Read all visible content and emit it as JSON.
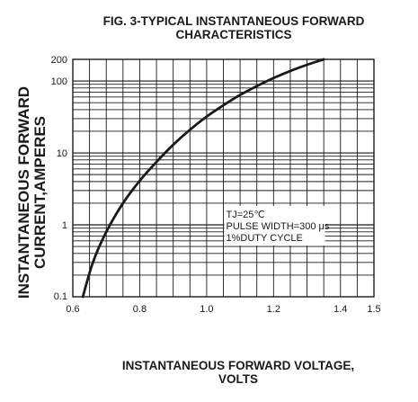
{
  "chart_data": {
    "type": "line",
    "title_lines": [
      "FIG. 3-TYPICAL INSTANTANEOUS FORWARD",
      "CHARACTERISTICS"
    ],
    "xlabel_lines": [
      "INSTANTANEOUS FORWARD VOLTAGE,",
      "VOLTS"
    ],
    "ylabel_lines": [
      "INSTANTANEOUS FORWARD",
      "CURRENT,AMPERES"
    ],
    "x_scale": "linear",
    "y_scale": "log",
    "xlim": [
      0.6,
      1.5
    ],
    "ylim": [
      0.1,
      200
    ],
    "x_ticks": [
      0.6,
      0.8,
      1.0,
      1.2,
      1.4,
      1.5
    ],
    "x_tick_labels": [
      "0.6",
      "0.8",
      "1.0",
      "1.2",
      "1.4",
      "1.5"
    ],
    "y_ticks": [
      0.1,
      1,
      10,
      100,
      200
    ],
    "y_tick_labels": [
      "0.1",
      "1",
      "10",
      "100",
      "200"
    ],
    "grid": true,
    "annotation_lines": [
      "TJ=25℃",
      "PULSE WIDTH=300 μs",
      "1%DUTY CYCLE"
    ],
    "series": [
      {
        "x": [
          0.63,
          0.66,
          0.7,
          0.75,
          0.8,
          0.85,
          0.9,
          0.95,
          1.0,
          1.05,
          1.1,
          1.15,
          1.2,
          1.25,
          1.3,
          1.35
        ],
        "y": [
          0.1,
          0.3,
          0.8,
          2.0,
          4.1,
          7.5,
          13.0,
          21.0,
          32.0,
          46.0,
          64.0,
          85.0,
          110.0,
          138.0,
          168.0,
          200.0
        ]
      }
    ]
  }
}
